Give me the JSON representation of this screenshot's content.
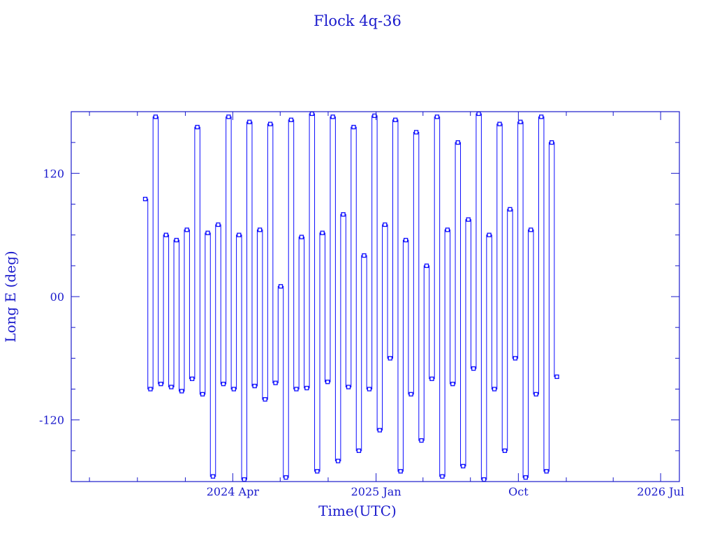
{
  "chart_data": {
    "type": "line",
    "title": "Flock 4q-36",
    "xlabel": "Time(UTC)",
    "ylabel": "Long E (deg)",
    "xlim": [
      "2023-05-27",
      "2026-08-06"
    ],
    "ylim": [
      -180,
      180
    ],
    "x_ticks": [
      {
        "date": "2024-04-01",
        "label": "2024 Apr"
      },
      {
        "date": "2025-01-01",
        "label": "2025 Jan"
      },
      {
        "date": "2025-10-01",
        "label": "Oct"
      },
      {
        "date": "2026-07-01",
        "label": "2026 Jul"
      }
    ],
    "y_ticks": [
      {
        "value": 120,
        "label": "120"
      },
      {
        "value": 0,
        "label": "00"
      },
      {
        "value": -120,
        "label": "-120"
      }
    ],
    "y_minor_step": 30,
    "grid": false,
    "colors": {
      "axes": "#1a1acc",
      "series": "#0a0aff"
    },
    "series": [
      {
        "marker": "square",
        "points": [
          [
            "2023-10-16",
            95
          ],
          [
            "2023-10-26",
            -90
          ],
          [
            "2023-11-05",
            175
          ],
          [
            "2023-11-15",
            -85
          ],
          [
            "2023-11-25",
            60
          ],
          [
            "2023-12-05",
            -88
          ],
          [
            "2023-12-15",
            55
          ],
          [
            "2023-12-25",
            -92
          ],
          [
            "2024-01-04",
            65
          ],
          [
            "2024-01-14",
            -80
          ],
          [
            "2024-01-24",
            165
          ],
          [
            "2024-02-03",
            -95
          ],
          [
            "2024-02-13",
            62
          ],
          [
            "2024-02-23",
            -175
          ],
          [
            "2024-03-04",
            70
          ],
          [
            "2024-03-14",
            -85
          ],
          [
            "2024-03-24",
            175
          ],
          [
            "2024-04-03",
            -90
          ],
          [
            "2024-04-13",
            60
          ],
          [
            "2024-04-23",
            -178
          ],
          [
            "2024-05-03",
            170
          ],
          [
            "2024-05-13",
            -87
          ],
          [
            "2024-05-23",
            65
          ],
          [
            "2024-06-02",
            -100
          ],
          [
            "2024-06-12",
            168
          ],
          [
            "2024-06-22",
            -84
          ],
          [
            "2024-07-02",
            10
          ],
          [
            "2024-07-12",
            -176
          ],
          [
            "2024-07-22",
            172
          ],
          [
            "2024-08-01",
            -90
          ],
          [
            "2024-08-11",
            58
          ],
          [
            "2024-08-21",
            -89
          ],
          [
            "2024-08-31",
            178
          ],
          [
            "2024-09-10",
            -170
          ],
          [
            "2024-09-20",
            62
          ],
          [
            "2024-09-30",
            -83
          ],
          [
            "2024-10-10",
            175
          ],
          [
            "2024-10-20",
            -160
          ],
          [
            "2024-10-30",
            80
          ],
          [
            "2024-11-09",
            -88
          ],
          [
            "2024-11-19",
            165
          ],
          [
            "2024-11-29",
            -150
          ],
          [
            "2024-12-09",
            40
          ],
          [
            "2024-12-19",
            -90
          ],
          [
            "2024-12-29",
            176
          ],
          [
            "2025-01-08",
            -130
          ],
          [
            "2025-01-18",
            70
          ],
          [
            "2025-01-28",
            -60
          ],
          [
            "2025-02-07",
            172
          ],
          [
            "2025-02-17",
            -170
          ],
          [
            "2025-02-27",
            55
          ],
          [
            "2025-03-09",
            -95
          ],
          [
            "2025-03-19",
            160
          ],
          [
            "2025-03-29",
            -140
          ],
          [
            "2025-04-08",
            30
          ],
          [
            "2025-04-18",
            -80
          ],
          [
            "2025-04-28",
            175
          ],
          [
            "2025-05-08",
            -175
          ],
          [
            "2025-05-18",
            65
          ],
          [
            "2025-05-28",
            -85
          ],
          [
            "2025-06-07",
            150
          ],
          [
            "2025-06-17",
            -165
          ],
          [
            "2025-06-27",
            75
          ],
          [
            "2025-07-07",
            -70
          ],
          [
            "2025-07-17",
            178
          ],
          [
            "2025-07-27",
            -178
          ],
          [
            "2025-08-06",
            60
          ],
          [
            "2025-08-16",
            -90
          ],
          [
            "2025-08-26",
            168
          ],
          [
            "2025-09-05",
            -150
          ],
          [
            "2025-09-15",
            85
          ],
          [
            "2025-09-25",
            -60
          ],
          [
            "2025-10-05",
            170
          ],
          [
            "2025-10-15",
            -176
          ],
          [
            "2025-10-25",
            65
          ],
          [
            "2025-11-04",
            -95
          ],
          [
            "2025-11-14",
            175
          ],
          [
            "2025-11-24",
            -170
          ],
          [
            "2025-12-04",
            150
          ],
          [
            "2025-12-14",
            -78
          ]
        ]
      }
    ]
  }
}
